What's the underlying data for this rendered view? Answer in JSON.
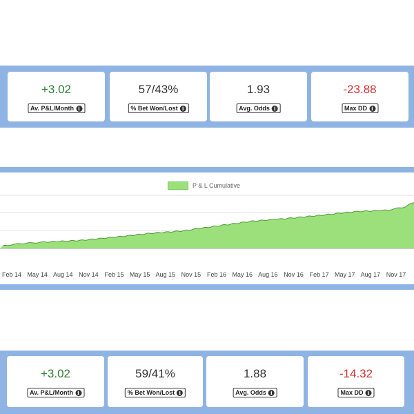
{
  "top_stats": [
    {
      "value": "+3.02",
      "tone": "pos",
      "label": "Av. P&L/Month"
    },
    {
      "value": "57/43%",
      "tone": "neutral",
      "label": "% Bet Won/Lost"
    },
    {
      "value": "1.93",
      "tone": "neutral",
      "label": "Avg. Odds"
    },
    {
      "value": "-23.88",
      "tone": "neg",
      "label": "Max DD"
    }
  ],
  "bottom_stats": [
    {
      "value": "+3.02",
      "tone": "pos",
      "label": "Av. P&L/Month"
    },
    {
      "value": "59/41%",
      "tone": "neutral",
      "label": "% Bet Won/Lost"
    },
    {
      "value": "1.88",
      "tone": "neutral",
      "label": "Avg. Odds"
    },
    {
      "value": "-14.32",
      "tone": "neg",
      "label": "Max DD"
    }
  ],
  "colors": {
    "positive": "#2e7d32",
    "negative": "#d32f2f",
    "area_fill": "#9be07a",
    "area_line": "#4f9a3a",
    "band": "#8fb4e3"
  },
  "icons": {
    "info": "info-icon"
  },
  "chart_data": {
    "type": "area",
    "series": [
      {
        "name": "P & L Cumulative",
        "color": "#9be07a"
      }
    ],
    "legend_position": "top-center",
    "x_tick_labels": [
      "Feb 14",
      "May 14",
      "Aug 14",
      "Nov 14",
      "Feb 15",
      "May 15",
      "Aug 15",
      "Nov 15",
      "Feb 16",
      "May 16",
      "Aug 16",
      "Nov 16",
      "Feb 17",
      "May 17",
      "Aug 17",
      "Nov 17"
    ],
    "x_range": [
      "Jan 14",
      "Jan 18"
    ],
    "y_range": [
      0,
      100
    ],
    "grid": true,
    "approx_values": [
      {
        "x": "Jan 14",
        "y": 5
      },
      {
        "x": "Mar 14",
        "y": 9
      },
      {
        "x": "Jun 14",
        "y": 12
      },
      {
        "x": "Oct 14",
        "y": 15
      },
      {
        "x": "Feb 15",
        "y": 21
      },
      {
        "x": "Jun 15",
        "y": 28
      },
      {
        "x": "Oct 15",
        "y": 33
      },
      {
        "x": "Feb 16",
        "y": 42
      },
      {
        "x": "Jun 16",
        "y": 51
      },
      {
        "x": "Oct 16",
        "y": 56
      },
      {
        "x": "Feb 17",
        "y": 62
      },
      {
        "x": "Jun 17",
        "y": 69
      },
      {
        "x": "Oct 17",
        "y": 72
      },
      {
        "x": "Dec 17",
        "y": 78
      },
      {
        "x": "Jan 18",
        "y": 86
      }
    ]
  }
}
